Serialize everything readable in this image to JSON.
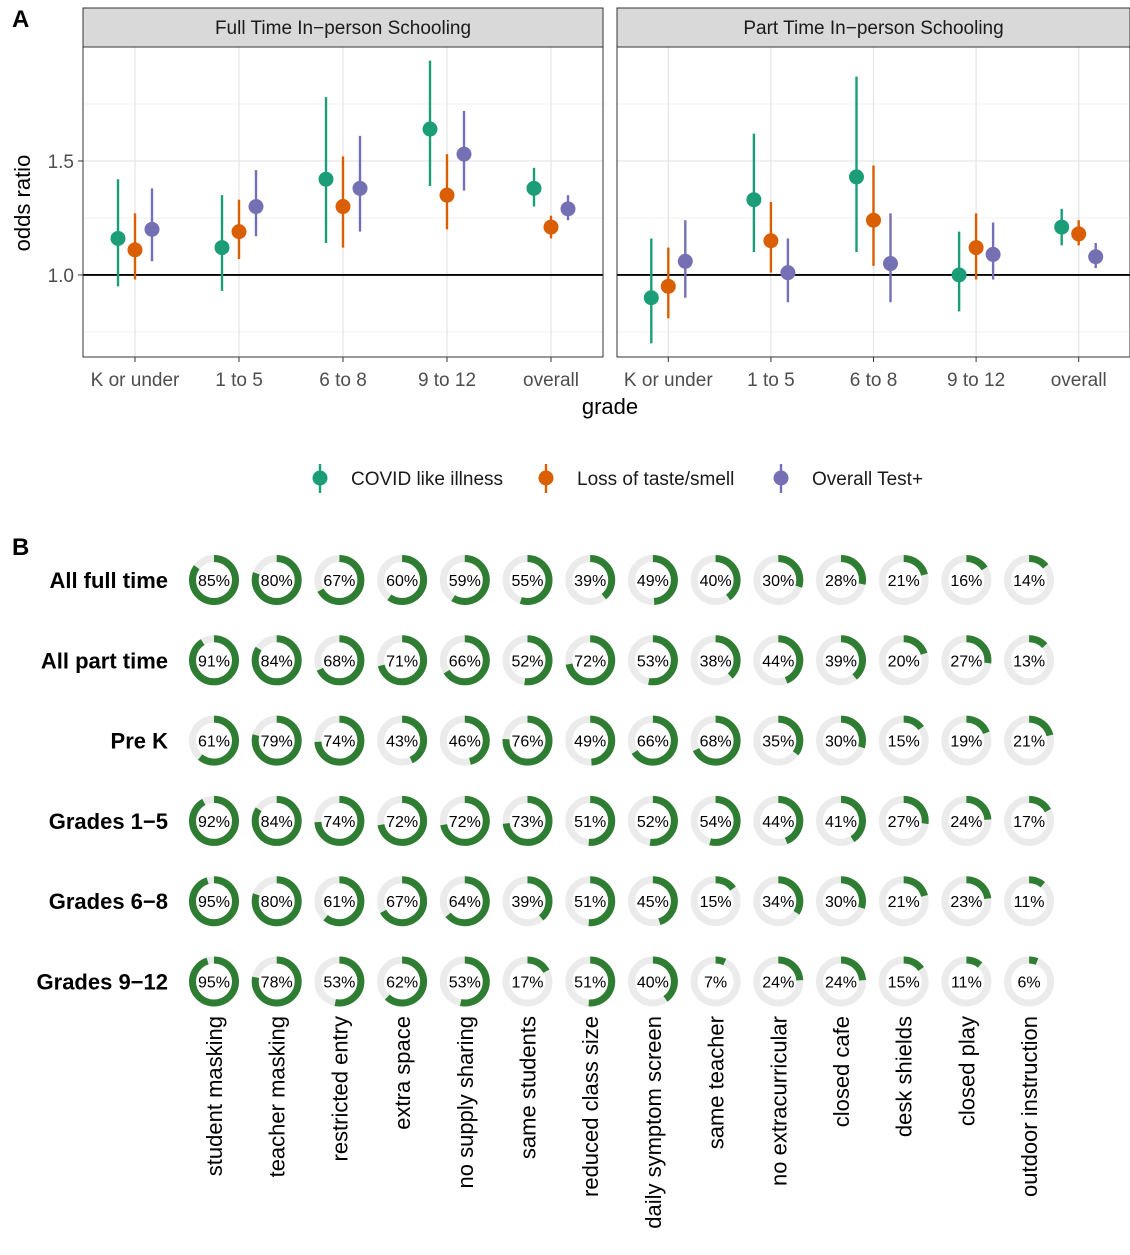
{
  "panel_a_label": "A",
  "panel_b_label": "B",
  "chart_data": [
    {
      "type": "scatter",
      "panels": [
        {
          "strip": "Full Time In−person Schooling",
          "values": {
            "COVID like illness": [
              [
                1.16,
                0.95,
                1.42
              ],
              [
                1.12,
                0.93,
                1.35
              ],
              [
                1.42,
                1.14,
                1.78
              ],
              [
                1.64,
                1.39,
                1.94
              ],
              [
                1.38,
                1.3,
                1.47
              ]
            ],
            "Loss of taste/smell": [
              [
                1.11,
                0.98,
                1.27
              ],
              [
                1.19,
                1.07,
                1.33
              ],
              [
                1.3,
                1.12,
                1.52
              ],
              [
                1.35,
                1.2,
                1.53
              ],
              [
                1.21,
                1.16,
                1.26
              ]
            ],
            "Overall Test+": [
              [
                1.2,
                1.06,
                1.38
              ],
              [
                1.3,
                1.17,
                1.46
              ],
              [
                1.38,
                1.19,
                1.61
              ],
              [
                1.53,
                1.37,
                1.72
              ],
              [
                1.29,
                1.24,
                1.35
              ]
            ]
          }
        },
        {
          "strip": "Part Time In−person Schooling",
          "values": {
            "COVID like illness": [
              [
                0.9,
                0.7,
                1.16
              ],
              [
                1.33,
                1.1,
                1.62
              ],
              [
                1.43,
                1.1,
                1.87
              ],
              [
                1.0,
                0.84,
                1.19
              ],
              [
                1.21,
                1.13,
                1.29
              ]
            ],
            "Loss of taste/smell": [
              [
                0.95,
                0.81,
                1.12
              ],
              [
                1.15,
                1.01,
                1.32
              ],
              [
                1.24,
                1.04,
                1.48
              ],
              [
                1.12,
                0.98,
                1.27
              ],
              [
                1.18,
                1.13,
                1.24
              ]
            ],
            "Overall Test+": [
              [
                1.06,
                0.9,
                1.24
              ],
              [
                1.01,
                0.88,
                1.16
              ],
              [
                1.05,
                0.88,
                1.27
              ],
              [
                1.09,
                0.98,
                1.23
              ],
              [
                1.08,
                1.03,
                1.14
              ]
            ]
          }
        }
      ],
      "categories": [
        "K or under",
        "1 to 5",
        "6 to 8",
        "9 to 12",
        "overall"
      ],
      "series": [
        {
          "name": "COVID like illness",
          "color": "#1b9e77"
        },
        {
          "name": "Loss of taste/smell",
          "color": "#d95f02"
        },
        {
          "name": "Overall Test+",
          "color": "#7570b3"
        }
      ],
      "xlabel": "grade",
      "ylabel": "odds ratio",
      "yticks": [
        1.0,
        1.5
      ],
      "ylim": [
        0.64,
        2.0
      ],
      "reference_line": 1.0,
      "legend_position": "bottom",
      "grid": true
    },
    {
      "type": "donut-grid",
      "rows": [
        "All full time",
        "All part time",
        "Pre K",
        "Grades 1−5",
        "Grades 6−8",
        "Grades 9−12"
      ],
      "columns": [
        "student masking",
        "teacher masking",
        "restricted entry",
        "extra space",
        "no supply sharing",
        "same students",
        "reduced class size",
        "daily symptom screen",
        "same teacher",
        "no extracurricular",
        "closed cafe",
        "desk shields",
        "closed play",
        "outdoor instruction"
      ],
      "values": [
        [
          85,
          80,
          67,
          60,
          59,
          55,
          39,
          49,
          40,
          30,
          28,
          21,
          16,
          14
        ],
        [
          91,
          84,
          68,
          71,
          66,
          52,
          72,
          53,
          38,
          44,
          39,
          20,
          27,
          13
        ],
        [
          61,
          79,
          74,
          43,
          46,
          76,
          49,
          66,
          68,
          35,
          30,
          15,
          19,
          21
        ],
        [
          92,
          84,
          74,
          72,
          72,
          73,
          51,
          52,
          54,
          44,
          41,
          27,
          24,
          17
        ],
        [
          95,
          80,
          61,
          67,
          64,
          39,
          51,
          45,
          15,
          34,
          30,
          21,
          23,
          11
        ],
        [
          95,
          78,
          53,
          62,
          53,
          17,
          51,
          40,
          7,
          24,
          24,
          15,
          11,
          6
        ]
      ],
      "value_suffix": "%",
      "fill_color": "#2e7d32",
      "track_color": "#ebebeb"
    }
  ]
}
